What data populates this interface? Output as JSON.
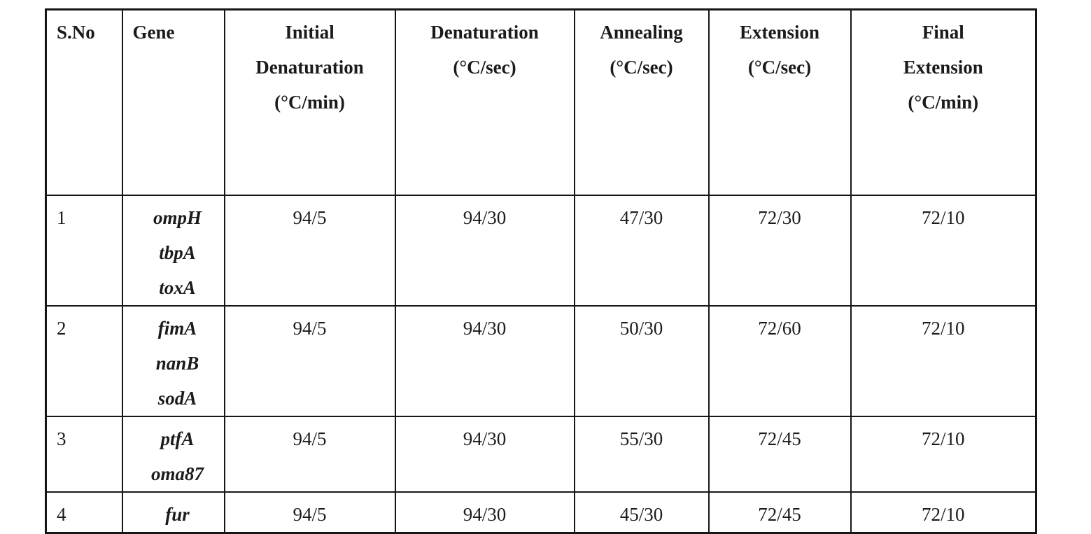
{
  "table": {
    "description": "PCR cycling conditions table",
    "border_color": "#161616",
    "text_color": "#1b1b1b",
    "background_color": "#ffffff",
    "columns": [
      {
        "id": "sno",
        "lines": [
          "S.No"
        ]
      },
      {
        "id": "gene",
        "lines": [
          "Gene"
        ]
      },
      {
        "id": "initial_denaturation",
        "lines": [
          "Initial",
          "Denaturation",
          "(°C/min)"
        ]
      },
      {
        "id": "denaturation",
        "lines": [
          "Denaturation",
          "(°C/sec)"
        ]
      },
      {
        "id": "annealing",
        "lines": [
          "Annealing",
          "(°C/sec)"
        ]
      },
      {
        "id": "extension",
        "lines": [
          "Extension",
          "(°C/sec)"
        ]
      },
      {
        "id": "final_extension",
        "lines": [
          "Final",
          "Extension",
          "(°C/min)"
        ]
      }
    ],
    "rows": [
      {
        "sno": "1",
        "genes": [
          "ompH",
          "tbpA",
          "toxA"
        ],
        "initial_denaturation": "94/5",
        "denaturation": "94/30",
        "annealing": "47/30",
        "extension": "72/30",
        "final_extension": "72/10"
      },
      {
        "sno": "2",
        "genes": [
          "fimA",
          "nanB",
          "sodA"
        ],
        "initial_denaturation": "94/5",
        "denaturation": "94/30",
        "annealing": "50/30",
        "extension": "72/60",
        "final_extension": "72/10"
      },
      {
        "sno": "3",
        "genes": [
          "ptfA",
          "oma87"
        ],
        "initial_denaturation": "94/5",
        "denaturation": "94/30",
        "annealing": "55/30",
        "extension": "72/45",
        "final_extension": "72/10"
      },
      {
        "sno": "4",
        "genes": [
          "fur"
        ],
        "initial_denaturation": "94/5",
        "denaturation": "94/30",
        "annealing": "45/30",
        "extension": "72/45",
        "final_extension": "72/10"
      }
    ]
  }
}
